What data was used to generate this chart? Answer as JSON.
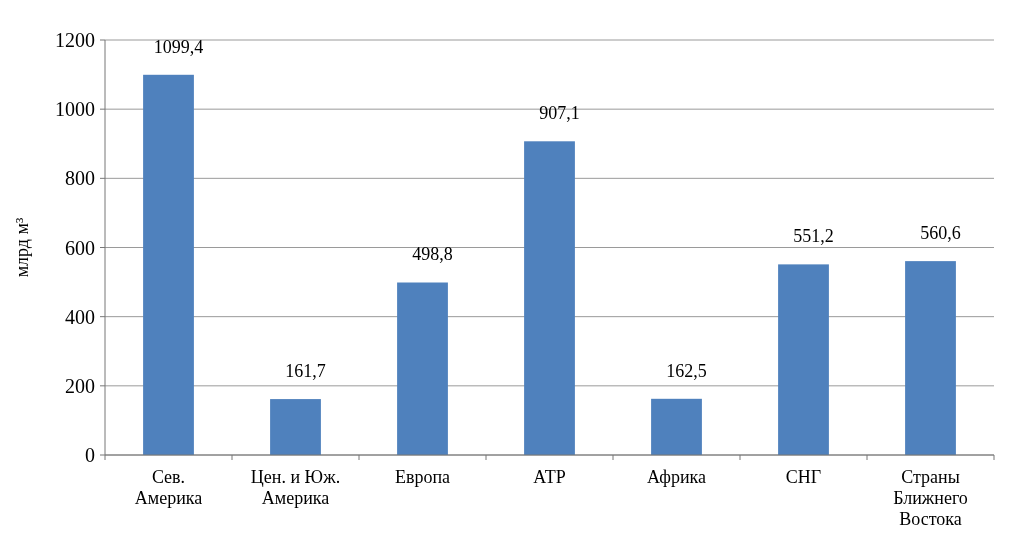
{
  "chart_data": {
    "type": "bar",
    "ylabel": "млрд м³",
    "categories": [
      "Сев. Америка",
      "Цен. и Юж. Америка",
      "Европа",
      "АТР",
      "Африка",
      "СНГ",
      "Страны Ближнего Востока"
    ],
    "values": [
      1099.4,
      161.7,
      498.8,
      907.1,
      162.5,
      551.2,
      560.6
    ],
    "value_labels": [
      "1099,4",
      "161,7",
      "498,8",
      "907,1",
      "162,5",
      "551,2",
      "560,6"
    ],
    "color": "#4f81bd",
    "ylim": [
      0,
      1200
    ],
    "yticks": [
      0,
      200,
      400,
      600,
      800,
      1000,
      1200
    ],
    "grid": "y"
  }
}
